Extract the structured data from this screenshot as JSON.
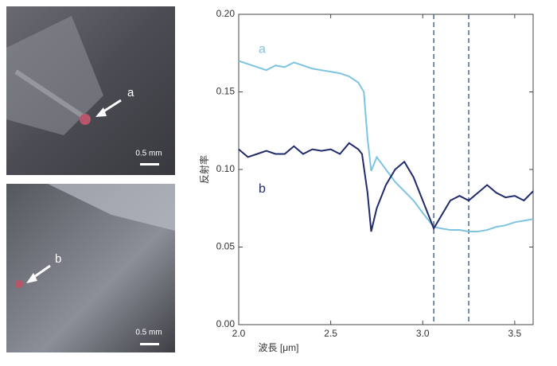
{
  "photos": [
    {
      "label": "a",
      "scale": "0.5 mm"
    },
    {
      "label": "b",
      "scale": "0.5 mm"
    }
  ],
  "chart_data": {
    "type": "line",
    "xlabel": "波長 [μm]",
    "ylabel": "反射率",
    "xlim": [
      2.0,
      3.6
    ],
    "ylim": [
      0,
      0.2
    ],
    "xticks": [
      {
        "value": 2,
        "label": "2.0"
      },
      2.5,
      {
        "value": 3,
        "label": "3.0"
      },
      3.5
    ],
    "yticks": [
      {
        "value": 0,
        "label": "0.00"
      },
      0.05,
      {
        "value": 0.1,
        "label": "0.10"
      },
      0.15,
      {
        "value": 0.2,
        "label": "0.20"
      }
    ],
    "vlines": [
      3.06,
      3.25
    ],
    "series": [
      {
        "name": "a",
        "color": "#7ec4e2",
        "x": [
          2.0,
          2.05,
          2.1,
          2.15,
          2.2,
          2.25,
          2.3,
          2.35,
          2.4,
          2.45,
          2.5,
          2.55,
          2.6,
          2.65,
          2.68,
          2.7,
          2.72,
          2.75,
          2.8,
          2.85,
          2.9,
          2.95,
          3.0,
          3.06,
          3.1,
          3.15,
          3.2,
          3.25,
          3.3,
          3.35,
          3.4,
          3.45,
          3.5,
          3.55,
          3.6
        ],
        "values": [
          0.17,
          0.168,
          0.166,
          0.164,
          0.167,
          0.166,
          0.169,
          0.167,
          0.165,
          0.164,
          0.163,
          0.162,
          0.16,
          0.156,
          0.15,
          0.12,
          0.099,
          0.108,
          0.1,
          0.092,
          0.086,
          0.08,
          0.072,
          0.063,
          0.062,
          0.061,
          0.061,
          0.06,
          0.06,
          0.061,
          0.063,
          0.064,
          0.066,
          0.067,
          0.068
        ]
      },
      {
        "name": "b",
        "color": "#1f2a6b",
        "x": [
          2.0,
          2.05,
          2.1,
          2.15,
          2.2,
          2.25,
          2.3,
          2.35,
          2.4,
          2.45,
          2.5,
          2.55,
          2.6,
          2.65,
          2.67,
          2.7,
          2.72,
          2.75,
          2.8,
          2.85,
          2.9,
          2.95,
          3.0,
          3.06,
          3.1,
          3.15,
          3.2,
          3.25,
          3.3,
          3.35,
          3.4,
          3.45,
          3.5,
          3.55,
          3.6
        ],
        "values": [
          0.113,
          0.108,
          0.11,
          0.112,
          0.11,
          0.11,
          0.115,
          0.11,
          0.113,
          0.112,
          0.113,
          0.11,
          0.117,
          0.113,
          0.11,
          0.085,
          0.06,
          0.075,
          0.09,
          0.1,
          0.105,
          0.095,
          0.08,
          0.062,
          0.07,
          0.08,
          0.083,
          0.08,
          0.085,
          0.09,
          0.085,
          0.082,
          0.083,
          0.08,
          0.086
        ]
      }
    ]
  }
}
